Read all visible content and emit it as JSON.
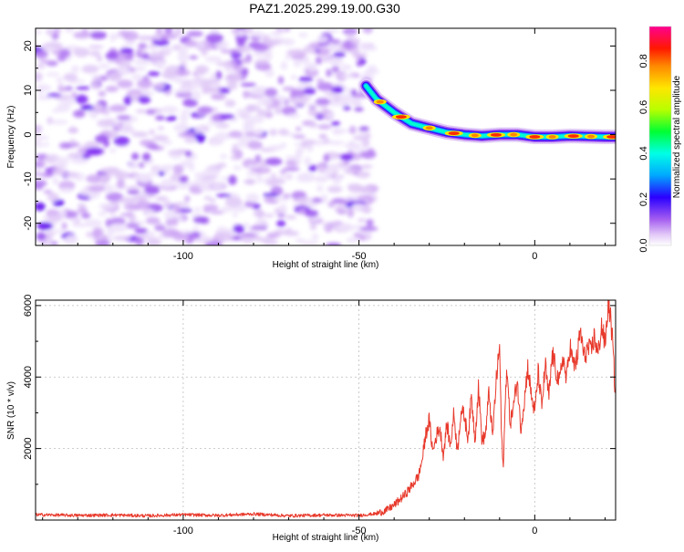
{
  "title": "PAZ1.2025.299.19.00.G30",
  "chart_data": [
    {
      "type": "heatmap",
      "title": "PAZ1.2025.299.19.00.G30",
      "xlabel": "Height of straight line (km)",
      "ylabel": "Frequency (Hz)",
      "xlim": [
        -142,
        23
      ],
      "ylim": [
        -25,
        24
      ],
      "xticks": [
        -100,
        -50,
        0
      ],
      "yticks": [
        -20,
        -10,
        0,
        10,
        20
      ],
      "noise_region_x": [
        -142,
        -46
      ],
      "signal_ridge": {
        "x": [
          -48,
          -45,
          -40,
          -35,
          -30,
          -25,
          -20,
          -15,
          -10,
          -5,
          0,
          5,
          10,
          15,
          20,
          23
        ],
        "frequency": [
          11,
          8,
          5,
          2.5,
          1.5,
          0.5,
          0,
          -0.3,
          0,
          0,
          -0.5,
          -0.5,
          -0.3,
          -0.4,
          -0.5,
          -0.5
        ]
      },
      "colorbar": {
        "label": "Normalized spectral amplitude",
        "range": [
          0.0,
          0.95
        ],
        "ticks": [
          0.0,
          0.2,
          0.4,
          0.6,
          0.8
        ],
        "tick_labels": [
          "0.0",
          "0.2",
          "0.4",
          "0.6",
          "0.8"
        ],
        "colormap": "rainbow"
      }
    },
    {
      "type": "line",
      "xlabel": "Height of straight line (km)",
      "ylabel": "SNR (10 * v/v)",
      "xlim": [
        -142,
        23
      ],
      "ylim": [
        0,
        6150
      ],
      "xticks": [
        -100,
        -50,
        0
      ],
      "yticks": [
        2000,
        4000,
        6000
      ],
      "series": [
        {
          "name": "SNR",
          "color": "#e8392b",
          "x": [
            -142,
            -130,
            -120,
            -110,
            -100,
            -90,
            -80,
            -70,
            -60,
            -50,
            -45,
            -42,
            -40,
            -37,
            -35,
            -33,
            -32,
            -31,
            -30,
            -29,
            -28,
            -27,
            -26,
            -25,
            -24,
            -23,
            -22,
            -21,
            -20,
            -19,
            -18,
            -17,
            -16,
            -15,
            -14,
            -13,
            -12,
            -11,
            -10,
            -9.5,
            -9,
            -8,
            -7,
            -6,
            -5,
            -4,
            -3,
            -2,
            -1,
            0,
            1,
            2,
            3,
            4,
            5,
            6,
            7,
            8,
            9,
            10,
            11,
            12,
            13,
            14,
            15,
            16,
            17,
            18,
            19,
            20,
            21,
            22,
            23
          ],
          "values": [
            150,
            130,
            140,
            120,
            150,
            130,
            170,
            120,
            140,
            130,
            180,
            280,
            420,
            700,
            950,
            1250,
            1700,
            2400,
            2800,
            1900,
            2350,
            2600,
            1800,
            2700,
            2050,
            3000,
            1900,
            3050,
            2900,
            2300,
            3450,
            2250,
            3750,
            2200,
            2400,
            3600,
            2300,
            3850,
            4850,
            2500,
            1400,
            4350,
            2700,
            3200,
            3950,
            2550,
            3300,
            4300,
            3500,
            3000,
            4150,
            3150,
            4350,
            3400,
            4650,
            4200,
            3800,
            4600,
            3900,
            4900,
            4300,
            4500,
            5300,
            4550,
            4800,
            4700,
            5150,
            4600,
            5450,
            4900,
            6150,
            5200,
            3400
          ]
        }
      ]
    }
  ]
}
